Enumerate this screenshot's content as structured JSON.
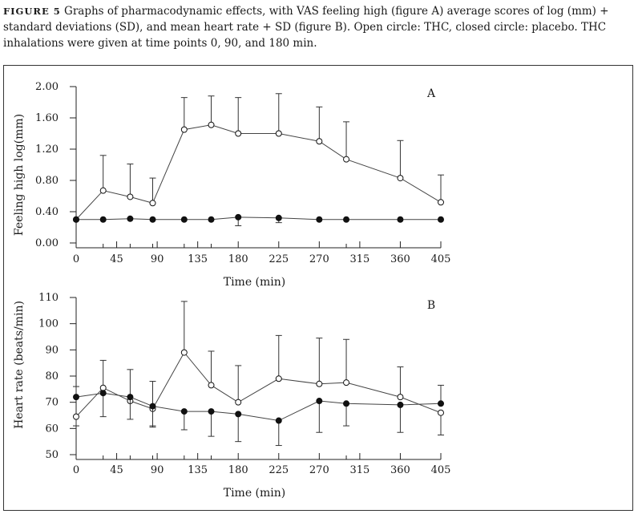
{
  "caption": {
    "label": "FIGURE 5",
    "text": "Graphs of pharmacodynamic effects, with VAS feeling high (figure A) average scores of log (mm) + standard deviations (SD), and mean heart rate + SD (figure B). Open circle: THC, closed circle: placebo. THC inhalations were given at time points 0, 90, and 180 min."
  },
  "chart_data": [
    {
      "type": "line",
      "panel_label": "A",
      "title": "",
      "xlabel": "Time (min)",
      "ylabel": "Feeling high log(mm)",
      "xlim": [
        0,
        405
      ],
      "ylim": [
        0,
        2.0
      ],
      "xticks": [
        0,
        45,
        90,
        135,
        180,
        225,
        270,
        315,
        360,
        405
      ],
      "xtick_labels": [
        "0",
        "45",
        "90",
        "135",
        "180",
        "225",
        "270",
        "315",
        "360",
        "405"
      ],
      "yticks": [
        0,
        0.4,
        0.8,
        1.2,
        1.6,
        2.0
      ],
      "ytick_labels": [
        "0.00",
        "0.40",
        "0.80",
        "1.20",
        "1.60",
        "2.00"
      ],
      "series": [
        {
          "name": "THC",
          "marker": "open-circle",
          "x": [
            0,
            30,
            60,
            85,
            120,
            150,
            180,
            225,
            270,
            300,
            360,
            405
          ],
          "y": [
            0.3,
            0.67,
            0.59,
            0.51,
            1.45,
            1.51,
            1.4,
            1.4,
            1.3,
            1.07,
            0.83,
            0.52
          ],
          "sd_upper": [
            0.3,
            1.12,
            1.01,
            0.83,
            1.86,
            1.88,
            1.86,
            1.91,
            1.74,
            1.55,
            1.31,
            0.87
          ]
        },
        {
          "name": "Placebo",
          "marker": "closed-circle",
          "x": [
            0,
            30,
            60,
            85,
            120,
            150,
            180,
            225,
            270,
            300,
            360,
            405
          ],
          "y": [
            0.3,
            0.3,
            0.31,
            0.3,
            0.3,
            0.3,
            0.33,
            0.32,
            0.3,
            0.3,
            0.3,
            0.3
          ],
          "sd_lower": [
            0.3,
            0.3,
            0.31,
            0.3,
            0.3,
            0.3,
            0.22,
            0.26,
            0.3,
            0.3,
            0.3,
            0.3
          ]
        }
      ]
    },
    {
      "type": "line",
      "panel_label": "B",
      "title": "",
      "xlabel": "Time (min)",
      "ylabel": "Heart rate (beats/min)",
      "xlim": [
        0,
        405
      ],
      "ylim": [
        50,
        110
      ],
      "xticks": [
        0,
        45,
        90,
        135,
        180,
        225,
        270,
        315,
        360,
        405
      ],
      "xtick_labels": [
        "0",
        "45",
        "90",
        "135",
        "180",
        "225",
        "270",
        "315",
        "360",
        "405"
      ],
      "yticks": [
        50,
        60,
        70,
        80,
        90,
        100,
        110
      ],
      "ytick_labels": [
        "50",
        "60",
        "70",
        "80",
        "90",
        "100",
        "110"
      ],
      "series": [
        {
          "name": "THC",
          "marker": "open-circle",
          "x": [
            0,
            30,
            60,
            85,
            120,
            150,
            180,
            225,
            270,
            300,
            360,
            405
          ],
          "y": [
            64.5,
            75.5,
            70.5,
            67.5,
            89,
            76.5,
            70,
            79,
            77,
            77.5,
            72,
            66
          ],
          "sd_lower": [
            61,
            null,
            null,
            61,
            null,
            null,
            null,
            null,
            null,
            null,
            null,
            57.5
          ],
          "sd_upper": [
            null,
            86,
            82.5,
            78,
            108.5,
            89.5,
            84,
            95.5,
            94.5,
            94,
            83.5,
            null
          ]
        },
        {
          "name": "Placebo",
          "marker": "closed-circle",
          "x": [
            0,
            30,
            60,
            85,
            120,
            150,
            180,
            225,
            270,
            300,
            360,
            405
          ],
          "y": [
            72,
            73.5,
            72,
            68.5,
            66.5,
            66.5,
            65.5,
            63,
            70.5,
            69.5,
            69,
            69.5
          ],
          "sd_lower": [
            null,
            64.5,
            63.5,
            60.5,
            59.5,
            57,
            55,
            53.5,
            58.5,
            61,
            58.5,
            null
          ],
          "sd_upper": [
            76,
            null,
            null,
            null,
            null,
            null,
            null,
            null,
            null,
            null,
            null,
            76.5
          ]
        }
      ]
    }
  ]
}
